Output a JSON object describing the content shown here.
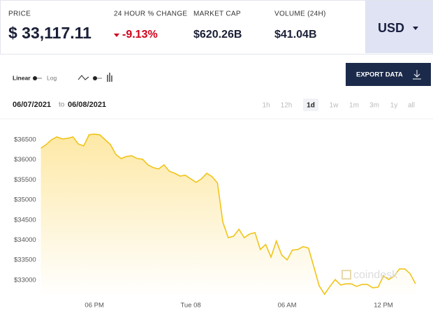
{
  "header": {
    "price_label": "PRICE",
    "price": "$ 33,117.11",
    "change_label": "24 HOUR % CHANGE",
    "change": "-9.13%",
    "market_cap_label": "MARKET CAP",
    "market_cap": "$620.26B",
    "volume_label": "VOLUME (24H)",
    "volume": "$41.04B",
    "currency": "USD"
  },
  "controls": {
    "linear": "Linear",
    "log": "Log",
    "export": "EXPORT DATA",
    "date_from": "06/07/2021",
    "date_sep": "to",
    "date_to": "06/08/2021",
    "ranges": [
      "1h",
      "12h",
      "1d",
      "1w",
      "1m",
      "3m",
      "1y",
      "all"
    ],
    "selected_range": 2
  },
  "watermark": "coindesk",
  "chart_data": {
    "type": "line",
    "color": "#f0c419",
    "categories": [
      null,
      null,
      null,
      null,
      null,
      null,
      null,
      null,
      null,
      null,
      "06 PM",
      null,
      null,
      null,
      null,
      null,
      null,
      null,
      null,
      null,
      null,
      null,
      null,
      null,
      null,
      null,
      null,
      null,
      "Tue 08",
      null,
      null,
      null,
      null,
      null,
      null,
      null,
      null,
      null,
      null,
      null,
      null,
      null,
      null,
      null,
      null,
      null,
      "06 AM",
      null,
      null,
      null,
      null,
      null,
      null,
      null,
      null,
      null,
      null,
      null,
      null,
      null,
      null,
      null,
      null,
      null,
      "12 PM",
      null,
      null,
      null,
      null,
      null,
      null
    ],
    "values": [
      36290,
      36380,
      36500,
      36570,
      36520,
      36535,
      36570,
      36395,
      36345,
      36625,
      36640,
      36625,
      36500,
      36380,
      36135,
      36030,
      36085,
      36100,
      36030,
      36015,
      35875,
      35805,
      35770,
      35875,
      35715,
      35665,
      35595,
      35615,
      35525,
      35440,
      35525,
      35665,
      35580,
      35420,
      34445,
      34060,
      34095,
      34270,
      34060,
      34150,
      34185,
      33765,
      33890,
      33575,
      33975,
      33625,
      33505,
      33750,
      33765,
      33835,
      33800,
      33330,
      32860,
      32650,
      32845,
      33015,
      32880,
      32910,
      32910,
      32845,
      32895,
      32895,
      32810,
      32825,
      33105,
      33015,
      33105,
      33280,
      33280,
      33160,
      32910
    ],
    "ylim": [
      32580,
      36760
    ],
    "yticks": [
      {
        "value": 33000,
        "label": "$33000"
      },
      {
        "value": 33500,
        "label": "$33500"
      },
      {
        "value": 34000,
        "label": "$34000"
      },
      {
        "value": 34500,
        "label": "$34500"
      },
      {
        "value": 35000,
        "label": "$35000"
      },
      {
        "value": 35500,
        "label": "$35500"
      },
      {
        "value": 36000,
        "label": "$36000"
      },
      {
        "value": 36500,
        "label": "$36500"
      }
    ]
  }
}
